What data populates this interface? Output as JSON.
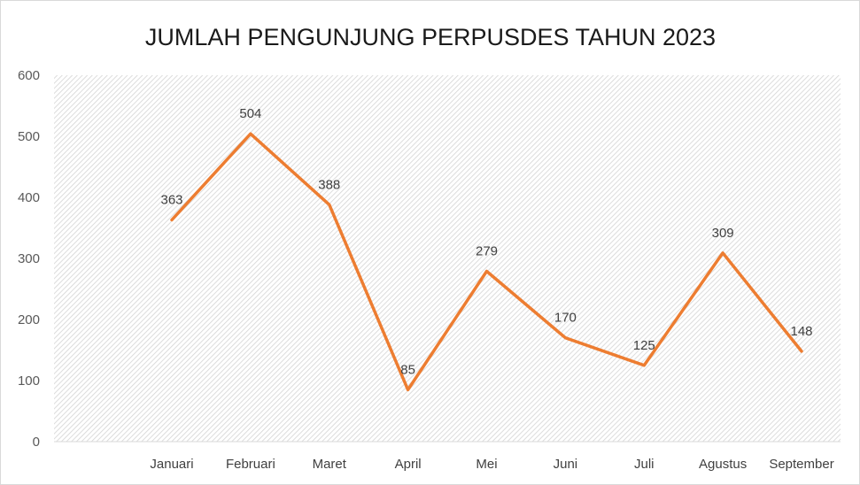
{
  "chart_data": {
    "type": "line",
    "title": "JUMLAH PENGUNJUNG PERPUSDES TAHUN 2023",
    "categories": [
      "Januari",
      "Februari",
      "Maret",
      "April",
      "Mei",
      "Juni",
      "Juli",
      "Agustus",
      "September"
    ],
    "series": [
      {
        "values": [
          363,
          504,
          388,
          85,
          279,
          170,
          125,
          309,
          148
        ],
        "color": "#ed7d31"
      }
    ],
    "ylim": [
      0,
      600
    ],
    "yticks": [
      0,
      100,
      200,
      300,
      400,
      500,
      600
    ],
    "data_labels": true,
    "grid": false,
    "plot_background": "hatched-gray"
  }
}
